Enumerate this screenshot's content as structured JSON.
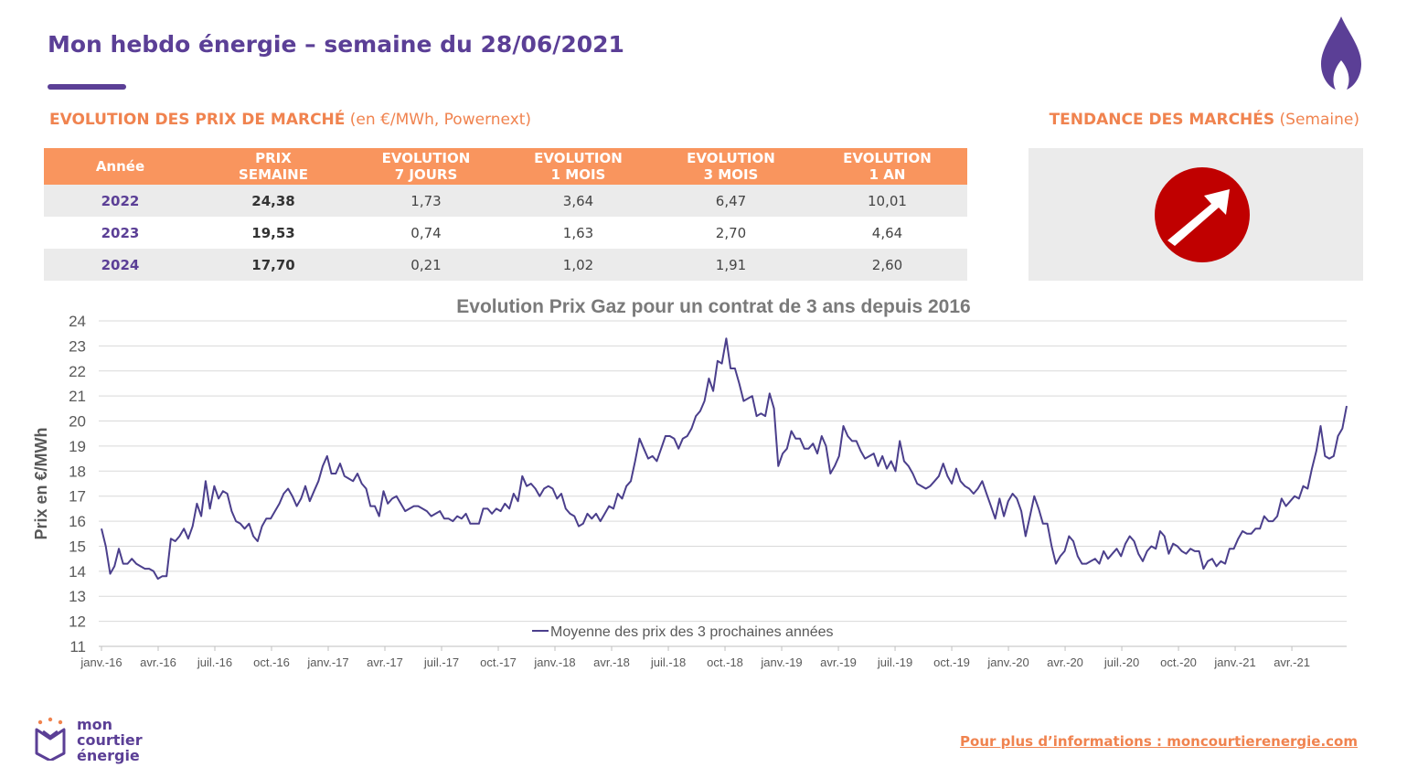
{
  "header": {
    "title": "Mon hebdo énergie – semaine du 28/06/2021"
  },
  "market": {
    "title_bold": "EVOLUTION DES PRIX DE MARCHÉ",
    "title_light": " (en €/MWh, Powernext)",
    "columns": [
      {
        "line1": "Année",
        "line2": ""
      },
      {
        "line1": "PRIX",
        "line2": "SEMAINE"
      },
      {
        "line1": "EVOLUTION",
        "line2": "7 JOURS"
      },
      {
        "line1": "EVOLUTION",
        "line2": "1 MOIS"
      },
      {
        "line1": "EVOLUTION",
        "line2": "3 MOIS"
      },
      {
        "line1": "EVOLUTION",
        "line2": "1 AN"
      }
    ],
    "rows": [
      {
        "year": "2022",
        "price": "24,38",
        "evo_7j": "1,73",
        "evo_1m": "3,64",
        "evo_3m": "6,47",
        "evo_1a": "10,01"
      },
      {
        "year": "2023",
        "price": "19,53",
        "evo_7j": "0,74",
        "evo_1m": "1,63",
        "evo_3m": "2,70",
        "evo_1a": "4,64"
      },
      {
        "year": "2024",
        "price": "17,70",
        "evo_7j": "0,21",
        "evo_1m": "1,02",
        "evo_3m": "1,91",
        "evo_1a": "2,60"
      }
    ]
  },
  "trend": {
    "title_bold": "TENDANCE DES MARCHÉS",
    "title_light": " (Semaine)",
    "direction": "up",
    "icon": "arrow-up-right-icon",
    "color": "#c00000"
  },
  "colors": {
    "brand_purple": "#5b3f96",
    "accent_orange": "#f9955e",
    "line": "#4b3f8c"
  },
  "chart_data": {
    "type": "line",
    "title": "Evolution Prix Gaz pour un contrat de 3 ans depuis 2016",
    "xlabel": "",
    "ylabel": "Prix en €/MWh",
    "ylim": [
      11,
      24
    ],
    "yticks": [
      "11",
      "12",
      "13",
      "14",
      "15",
      "16",
      "17",
      "18",
      "19",
      "20",
      "21",
      "22",
      "23",
      "24"
    ],
    "x_tick_labels": [
      "janv.-16",
      "avr.-16",
      "juil.-16",
      "oct.-16",
      "janv.-17",
      "avr.-17",
      "juil.-17",
      "oct.-17",
      "janv.-18",
      "avr.-18",
      "juil.-18",
      "oct.-18",
      "janv.-19",
      "avr.-19",
      "juil.-19",
      "oct.-19",
      "janv.-20",
      "avr.-20",
      "juil.-20",
      "oct.-20",
      "janv.-21",
      "avr.-21"
    ],
    "grid": "horizontal",
    "legend_position": "bottom-center",
    "series": [
      {
        "name": "Moyenne des prix des 3 prochaines années",
        "x_start": "2016-01",
        "x_end": "2021-06",
        "values": [
          15.7,
          15.0,
          13.9,
          14.2,
          14.9,
          14.3,
          14.3,
          14.5,
          14.3,
          14.2,
          14.1,
          14.1,
          14.0,
          13.7,
          13.8,
          13.8,
          15.3,
          15.2,
          15.4,
          15.7,
          15.3,
          15.8,
          16.7,
          16.2,
          17.6,
          16.5,
          17.4,
          16.9,
          17.2,
          17.1,
          16.4,
          16.0,
          15.9,
          15.7,
          15.9,
          15.4,
          15.2,
          15.8,
          16.1,
          16.1,
          16.4,
          16.7,
          17.1,
          17.3,
          17.0,
          16.6,
          16.9,
          17.4,
          16.8,
          17.2,
          17.6,
          18.2,
          18.6,
          17.9,
          17.9,
          18.3,
          17.8,
          17.7,
          17.6,
          17.9,
          17.5,
          17.3,
          16.6,
          16.6,
          16.2,
          17.2,
          16.7,
          16.9,
          17.0,
          16.7,
          16.4,
          16.5,
          16.6,
          16.6,
          16.5,
          16.4,
          16.2,
          16.3,
          16.4,
          16.1,
          16.1,
          16.0,
          16.2,
          16.1,
          16.3,
          15.9,
          15.9,
          15.9,
          16.5,
          16.5,
          16.3,
          16.5,
          16.4,
          16.7,
          16.5,
          17.1,
          16.8,
          17.8,
          17.4,
          17.5,
          17.3,
          17.0,
          17.3,
          17.4,
          17.3,
          16.9,
          17.1,
          16.5,
          16.3,
          16.2,
          15.8,
          15.9,
          16.3,
          16.1,
          16.3,
          16.0,
          16.3,
          16.6,
          16.5,
          17.1,
          16.9,
          17.4,
          17.6,
          18.4,
          19.3,
          18.9,
          18.5,
          18.6,
          18.4,
          18.9,
          19.4,
          19.4,
          19.3,
          18.9,
          19.3,
          19.4,
          19.7,
          20.2,
          20.4,
          20.8,
          21.7,
          21.2,
          22.4,
          22.3,
          23.3,
          22.1,
          22.1,
          21.5,
          20.8,
          20.9,
          21.0,
          20.2,
          20.3,
          20.2,
          21.1,
          20.5,
          18.2,
          18.7,
          18.9,
          19.6,
          19.3,
          19.3,
          18.9,
          18.9,
          19.1,
          18.7,
          19.4,
          19.0,
          17.9,
          18.2,
          18.6,
          19.8,
          19.4,
          19.2,
          19.2,
          18.8,
          18.5,
          18.6,
          18.7,
          18.2,
          18.6,
          18.1,
          18.4,
          18.0,
          19.2,
          18.4,
          18.2,
          17.9,
          17.5,
          17.4,
          17.3,
          17.4,
          17.6,
          17.8,
          18.3,
          17.8,
          17.5,
          18.1,
          17.6,
          17.4,
          17.3,
          17.1,
          17.3,
          17.6,
          17.1,
          16.6,
          16.1,
          16.9,
          16.2,
          16.8,
          17.1,
          16.9,
          16.4,
          15.4,
          16.2,
          17.0,
          16.5,
          15.9,
          15.9,
          15.0,
          14.3,
          14.6,
          14.8,
          15.4,
          15.2,
          14.6,
          14.3,
          14.3,
          14.4,
          14.5,
          14.3,
          14.8,
          14.5,
          14.7,
          14.9,
          14.6,
          15.1,
          15.4,
          15.2,
          14.7,
          14.4,
          14.8,
          15.0,
          14.9,
          15.6,
          15.4,
          14.7,
          15.1,
          15.0,
          14.8,
          14.7,
          14.9,
          14.8,
          14.8,
          14.1,
          14.4,
          14.5,
          14.2,
          14.4,
          14.3,
          14.9,
          14.9,
          15.3,
          15.6,
          15.5,
          15.5,
          15.7,
          15.7,
          16.2,
          16.0,
          16.0,
          16.2,
          16.9,
          16.6,
          16.8,
          17.0,
          16.9,
          17.4,
          17.3,
          18.1,
          18.8,
          19.8,
          18.6,
          18.5,
          18.6,
          19.4,
          19.7,
          20.6
        ]
      }
    ]
  },
  "footer": {
    "logo_line1": "mon",
    "logo_line2": "courtier",
    "logo_line3": "énergie",
    "link_text": "Pour plus d’informations : moncourtierenergie.com"
  }
}
